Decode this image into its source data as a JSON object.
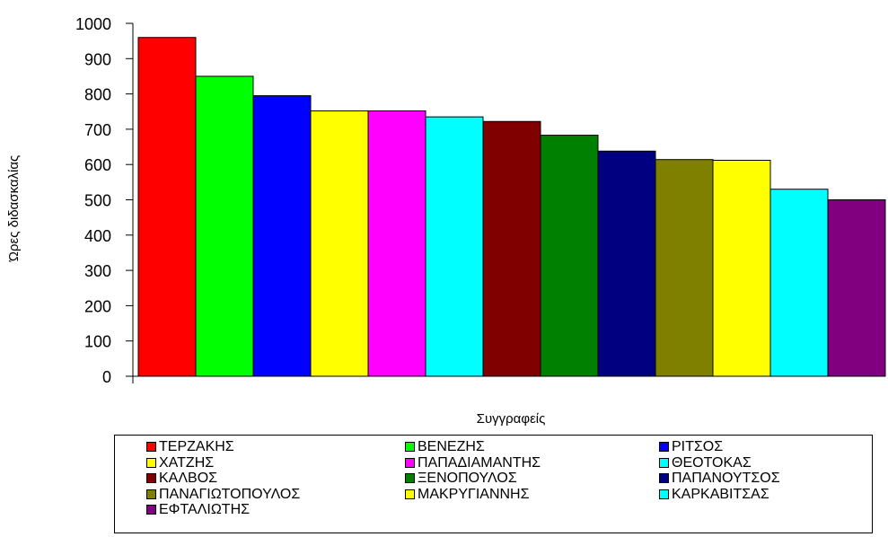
{
  "chart_data": {
    "type": "bar",
    "title": "",
    "xlabel": "Συγγραφείς",
    "ylabel": "Ώρες διδασκαλίας",
    "ylim": [
      0,
      1000
    ],
    "yticks": [
      "0",
      "100",
      "200",
      "300",
      "400",
      "500",
      "600",
      "700",
      "800",
      "900",
      "1000"
    ],
    "grid": false,
    "legend_position": "bottom",
    "categories": [
      "ΤΕΡΖΑΚΗΣ",
      "ΒΕΝΕΖΗΣ",
      "ΡΙΤΣΟΣ",
      "ΧΑΤΖΗΣ",
      "ΠΑΠΑΔΙΑΜΑΝΤΗΣ",
      "ΘΕΟΤΟΚΑΣ",
      "ΚΑΛΒΟΣ",
      "ΞΕΝΟΠΟΥΛΟΣ",
      "ΠΑΠΑΝΟΥΤΣΟΣ",
      "ΠΑΝΑΓΙΩΤΟΠΟΥΛΟΣ",
      "ΜΑΚΡΥΓΙΑΝΝΗΣ",
      "ΚΑΡΚΑΒΙΤΣΑΣ",
      "ΕΦΤΑΛΙΩΤΗΣ"
    ],
    "values": [
      960,
      850,
      795,
      752,
      752,
      735,
      722,
      683,
      638,
      614,
      612,
      530,
      500
    ],
    "colors": [
      "#ff0000",
      "#00ff00",
      "#0000ff",
      "#ffff00",
      "#ff00ff",
      "#00ffff",
      "#800000",
      "#008000",
      "#000080",
      "#808000",
      "#ffff00",
      "#00ffff",
      "#800080"
    ]
  }
}
